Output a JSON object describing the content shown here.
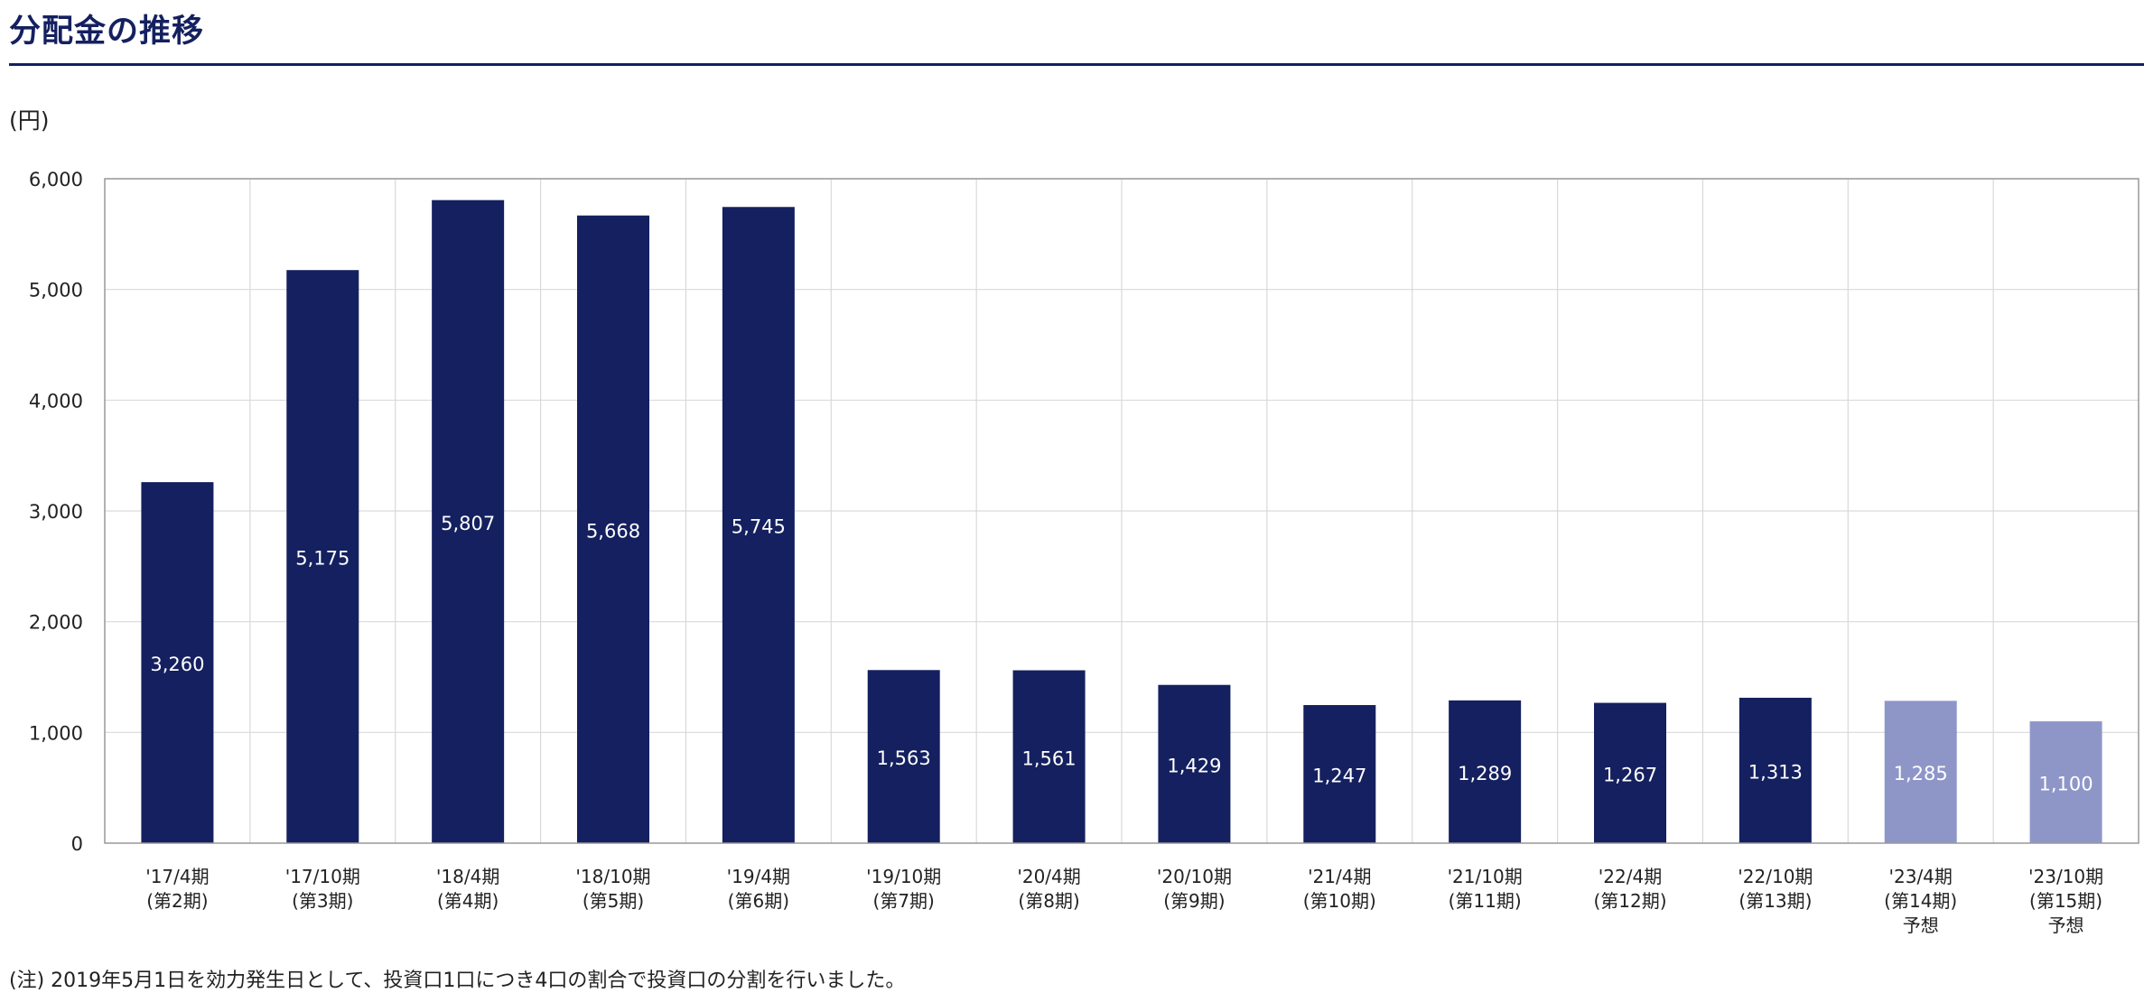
{
  "page": {
    "title": "分配金の推移",
    "footnote": "(注) 2019年5月1日を効力発生日として、投資口1口につき4口の割合で投資口の分割を行いました。"
  },
  "colors": {
    "title": "#14205f",
    "actual": "#14205f",
    "forecast": "#8e96c8",
    "grid": "#d9d9d9",
    "axis": "#999999",
    "label_inside": "#ffffff",
    "text": "#222222"
  },
  "chart_data": {
    "type": "bar",
    "unit_label": "(円)",
    "categories": [
      [
        "'17/4期",
        "(第2期)"
      ],
      [
        "'17/10期",
        "(第3期)"
      ],
      [
        "'18/4期",
        "(第4期)"
      ],
      [
        "'18/10期",
        "(第5期)"
      ],
      [
        "'19/4期",
        "(第6期)"
      ],
      [
        "'19/10期",
        "(第7期)"
      ],
      [
        "'20/4期",
        "(第8期)"
      ],
      [
        "'20/10期",
        "(第9期)"
      ],
      [
        "'21/4期",
        "(第10期)"
      ],
      [
        "'21/10期",
        "(第11期)"
      ],
      [
        "'22/4期",
        "(第12期)"
      ],
      [
        "'22/10期",
        "(第13期)"
      ],
      [
        "'23/4期",
        "(第14期)",
        "予想"
      ],
      [
        "'23/10期",
        "(第15期)",
        "予想"
      ]
    ],
    "values": [
      3260,
      5175,
      5807,
      5668,
      5745,
      1563,
      1561,
      1429,
      1247,
      1289,
      1267,
      1313,
      1285,
      1100
    ],
    "value_labels": [
      "3,260",
      "5,175",
      "5,807",
      "5,668",
      "5,745",
      "1,563",
      "1,561",
      "1,429",
      "1,247",
      "1,289",
      "1,267",
      "1,313",
      "1,285",
      "1,100"
    ],
    "forecast": [
      false,
      false,
      false,
      false,
      false,
      false,
      false,
      false,
      false,
      false,
      false,
      false,
      true,
      true
    ],
    "ylim": [
      0,
      6000
    ],
    "yticks": [
      0,
      1000,
      2000,
      3000,
      4000,
      5000,
      6000
    ],
    "ytick_labels": [
      "0",
      "1,000",
      "2,000",
      "3,000",
      "4,000",
      "5,000",
      "6,000"
    ],
    "grid": true,
    "legend": "none"
  }
}
